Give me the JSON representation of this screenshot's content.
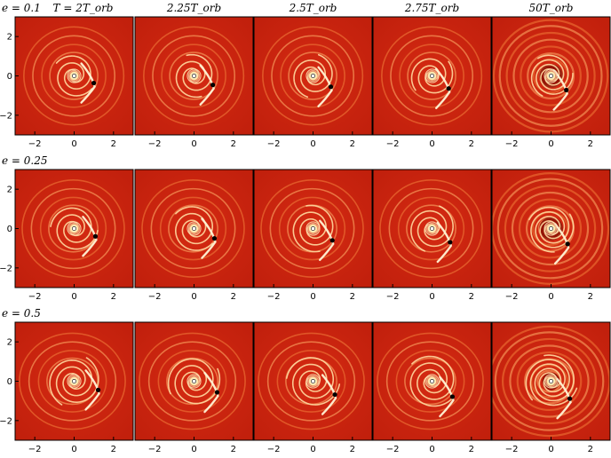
{
  "figure": {
    "row_labels": [
      "e = 0.1",
      "e = 0.25",
      "e = 0.5"
    ],
    "column_labels": [
      "T = 2T_orb",
      "2.25T_orb",
      "2.5T_orb",
      "2.75T_orb",
      "50T_orb"
    ],
    "x_ticks": [
      "−2",
      "0",
      "2"
    ],
    "y_ticks": [
      "2",
      "0",
      "−2"
    ],
    "colors": {
      "background": "#c8230f",
      "dark": "#7a0a00",
      "bright": "#ffe9a8",
      "white": "#ffffff"
    }
  }
}
